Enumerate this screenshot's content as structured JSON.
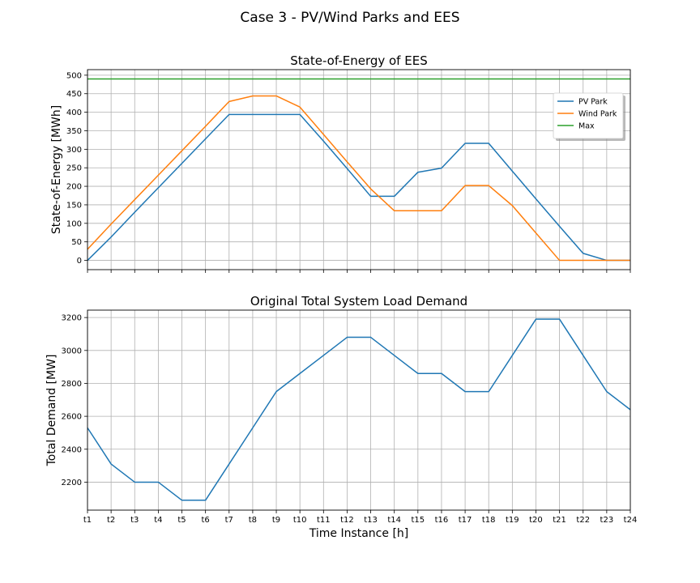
{
  "figure": {
    "suptitle": "Case 3 - PV/Wind Parks and EES"
  },
  "chart_data": [
    {
      "type": "line",
      "title": "State-of-Energy of EES",
      "xlabel": "",
      "ylabel": "State-of-Energy [MWh]",
      "x": [
        "t1",
        "t2",
        "t3",
        "t4",
        "t5",
        "t6",
        "t7",
        "t8",
        "t9",
        "t10",
        "t11",
        "t12",
        "t13",
        "t14",
        "t15",
        "t16",
        "t17",
        "t18",
        "t19",
        "t20",
        "t21",
        "t22",
        "t23",
        "t24"
      ],
      "ylim": [
        -25,
        515
      ],
      "yticks": [
        0,
        50,
        100,
        150,
        200,
        250,
        300,
        350,
        400,
        450,
        500
      ],
      "xtick_labels_visible": false,
      "grid": true,
      "legend": "upper right",
      "series": [
        {
          "name": "PV Park",
          "color": "#1f77b4",
          "values": [
            0,
            63,
            130,
            196,
            262,
            328,
            394,
            394,
            394,
            394,
            322,
            248,
            173,
            173,
            238,
            249,
            316,
            316,
            241,
            166,
            92,
            19,
            0,
            0
          ]
        },
        {
          "name": "Wind Park",
          "color": "#ff7f0e",
          "values": [
            30,
            98,
            164,
            230,
            296,
            362,
            429,
            444,
            444,
            414,
            340,
            266,
            193,
            134,
            134,
            134,
            202,
            202,
            148,
            74,
            0,
            0,
            0,
            0
          ]
        },
        {
          "name": "Max",
          "color": "#2ca02c",
          "values": [
            490,
            490,
            490,
            490,
            490,
            490,
            490,
            490,
            490,
            490,
            490,
            490,
            490,
            490,
            490,
            490,
            490,
            490,
            490,
            490,
            490,
            490,
            490,
            490
          ]
        }
      ]
    },
    {
      "type": "line",
      "title": "Original Total System Load Demand",
      "xlabel": "Time Instance [h]",
      "ylabel": "Total Demand [MW]",
      "x": [
        "t1",
        "t2",
        "t3",
        "t4",
        "t5",
        "t6",
        "t7",
        "t8",
        "t9",
        "t10",
        "t11",
        "t12",
        "t13",
        "t14",
        "t15",
        "t16",
        "t17",
        "t18",
        "t19",
        "t20",
        "t21",
        "t22",
        "t23",
        "t24"
      ],
      "ylim": [
        2030,
        3245
      ],
      "yticks": [
        2200,
        2400,
        2600,
        2800,
        3000,
        3200
      ],
      "grid": true,
      "series": [
        {
          "color": "#1f77b4",
          "values": [
            2530,
            2310,
            2200,
            2200,
            2090,
            2090,
            2310,
            2530,
            2750,
            2860,
            2970,
            3080,
            3080,
            2970,
            2860,
            2860,
            2750,
            2750,
            2970,
            3190,
            3190,
            2970,
            2750,
            2640
          ]
        }
      ]
    }
  ]
}
